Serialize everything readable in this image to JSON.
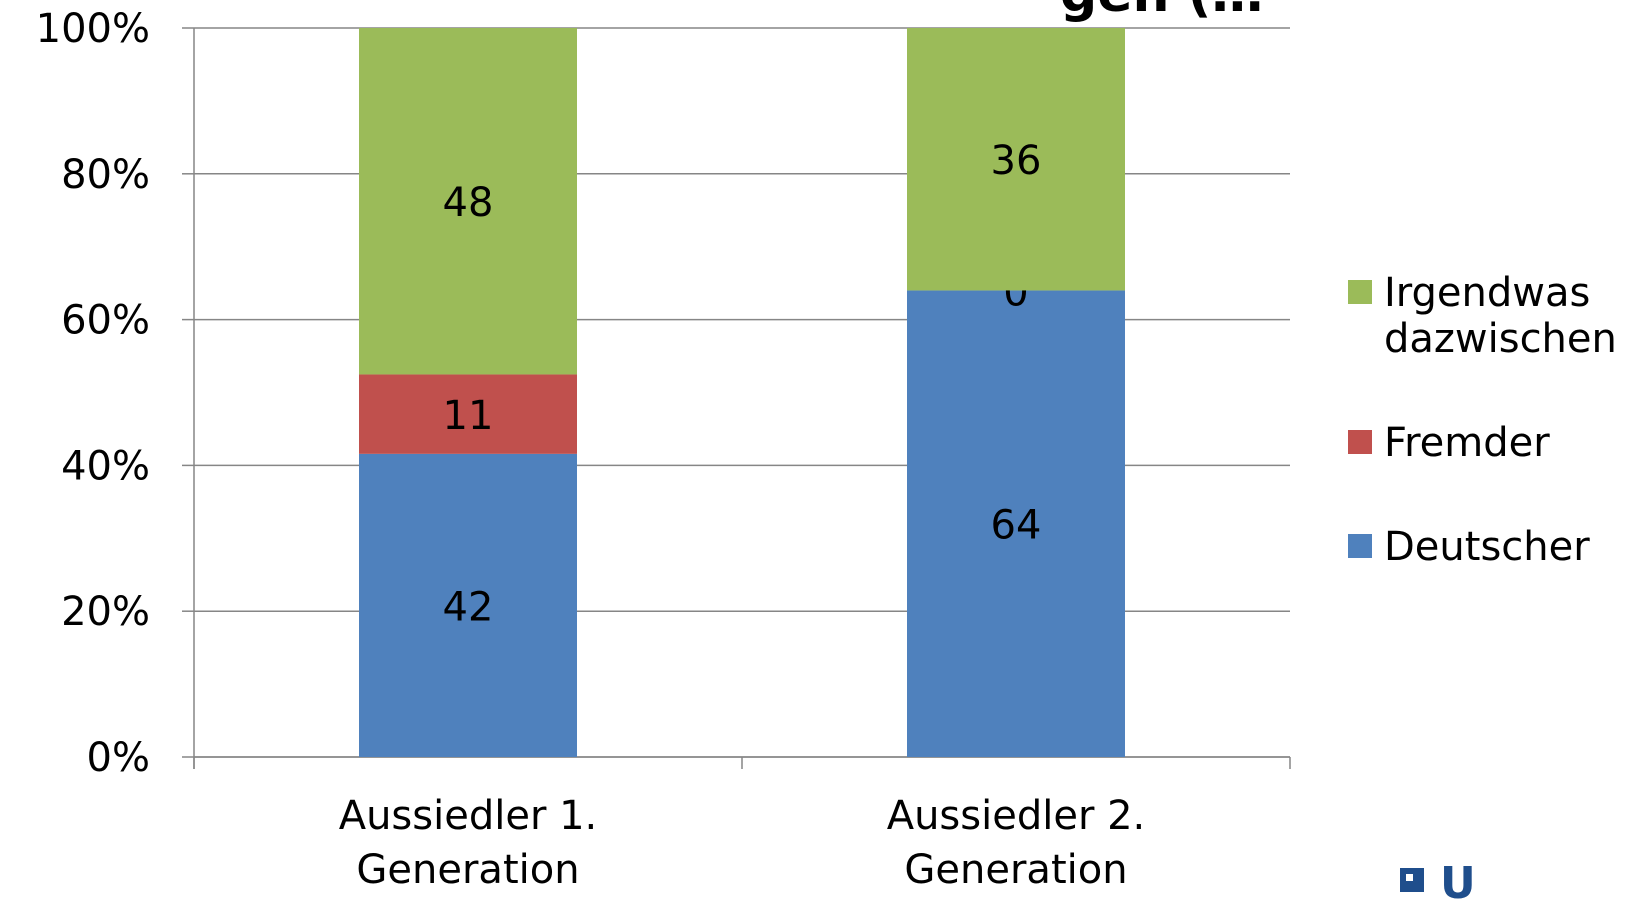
{
  "chart_data": {
    "type": "bar",
    "stacked": true,
    "normalized": true,
    "title_fragment": "gen (…",
    "categories": [
      "Aussiedler 1.\nGeneration",
      "Aussiedler 2.\nGeneration"
    ],
    "series": [
      {
        "name": "Deutscher",
        "values": [
          42,
          64
        ],
        "color": "#4f81bd"
      },
      {
        "name": "Fremder",
        "values": [
          11,
          0
        ],
        "color": "#c0504d"
      },
      {
        "name": "Irgendwas dazwischen",
        "values": [
          48,
          36
        ],
        "color": "#9bbb59"
      }
    ],
    "y_ticks": [
      "0%",
      "20%",
      "40%",
      "60%",
      "80%",
      "100%"
    ],
    "ylim": [
      0,
      100
    ],
    "grid": true,
    "legend": {
      "position": "right",
      "order": [
        "Irgendwas dazwischen",
        "Fremder",
        "Deutscher"
      ],
      "labels": [
        "Irgendwas\ndazwischen",
        "Fremder",
        "Deutscher"
      ]
    }
  },
  "logo": {
    "text": "U"
  }
}
